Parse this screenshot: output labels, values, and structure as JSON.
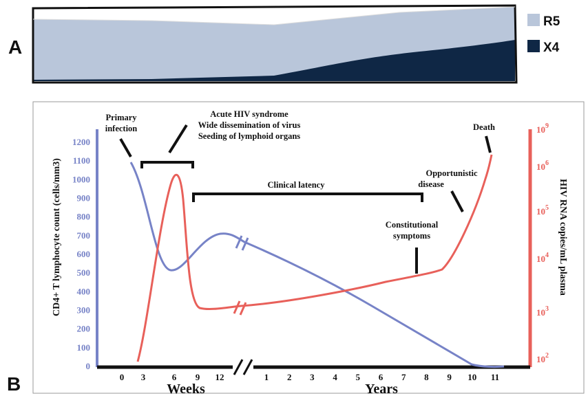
{
  "panel_a": {
    "label": "A",
    "legend": [
      {
        "name": "R5",
        "color": "#b9c6da"
      },
      {
        "name": "X4",
        "color": "#0f2745"
      }
    ]
  },
  "panel_b": {
    "label": "B"
  },
  "chart_data": [
    {
      "type": "area",
      "panel": "A",
      "x_note": "same timeline as panel B",
      "series": [
        {
          "name": "R5",
          "color": "#b9c6da",
          "values": "fills remainder above X4"
        },
        {
          "name": "X4",
          "color": "#0f2745",
          "values": "proportion rising late in infection"
        }
      ],
      "x_fraction": [
        0,
        0.5,
        1.0
      ],
      "x4_fraction": [
        0.02,
        0.08,
        0.6
      ]
    },
    {
      "type": "line",
      "panel": "B",
      "xlabel_weeks": "Weeks",
      "xlabel_years": "Years",
      "x_ticks_weeks": [
        "0",
        "3",
        "6",
        "9",
        "12"
      ],
      "x_ticks_years": [
        "1",
        "2",
        "3",
        "4",
        "5",
        "6",
        "7",
        "8",
        "9",
        "10",
        "11"
      ],
      "ylabel_left": "CD4+ T lymphocyte count (cells/mm3)",
      "ylim_left": [
        0,
        1200
      ],
      "y_ticks_left": [
        "0",
        "100",
        "200",
        "300",
        "400",
        "500",
        "600",
        "700",
        "800",
        "900",
        "1000",
        "1100",
        "1200"
      ],
      "ylabel_right": "HIV RNA copies/mL plasma",
      "y_ticks_right": [
        {
          "base": "10",
          "exp": "2"
        },
        {
          "base": "10",
          "exp": "3"
        },
        {
          "base": "10",
          "exp": "4"
        },
        {
          "base": "10",
          "exp": "5"
        },
        {
          "base": "10",
          "exp": "6"
        },
        {
          "base": "10",
          "exp": "9"
        }
      ],
      "series": [
        {
          "name": "CD4+ T lymphocyte count",
          "color": "#7783c7",
          "points": [
            {
              "x": "week 0.5",
              "y": 1100
            },
            {
              "x": "week 3",
              "y": 750
            },
            {
              "x": "week 6",
              "y": 520
            },
            {
              "x": "week 9",
              "y": 620
            },
            {
              "x": "week 12",
              "y": 720
            },
            {
              "x": "year 1",
              "y": 650
            },
            {
              "x": "year 4",
              "y": 400
            },
            {
              "x": "year 8",
              "y": 120
            },
            {
              "x": "year 10",
              "y": 5
            },
            {
              "x": "year 11.5",
              "y": 0
            }
          ]
        },
        {
          "name": "HIV RNA copies/mL plasma",
          "color": "#e8605a",
          "points": [
            {
              "x": "week 0.5",
              "y": "10^2"
            },
            {
              "x": "week 6",
              "y": "10^6"
            },
            {
              "x": "week 9",
              "y": "10^3"
            },
            {
              "x": "year 1",
              "y": "1.2x10^3"
            },
            {
              "x": "year 8",
              "y": "10^4"
            },
            {
              "x": "year 9",
              "y": "1.5x10^4"
            },
            {
              "x": "year 11",
              "y": "10^9"
            }
          ]
        }
      ],
      "annotations": [
        {
          "lines": [
            "Primary",
            "infection"
          ]
        },
        {
          "lines": [
            "Acute HIV syndrome",
            "Wide dissemination of virus",
            "Seeding of lymphoid organs"
          ]
        },
        {
          "lines": [
            "Clinical latency"
          ]
        },
        {
          "lines": [
            "Constitutional",
            "symptoms"
          ]
        },
        {
          "lines": [
            "Opportunistic",
            "disease"
          ]
        },
        {
          "lines": [
            "Death"
          ]
        }
      ]
    }
  ]
}
